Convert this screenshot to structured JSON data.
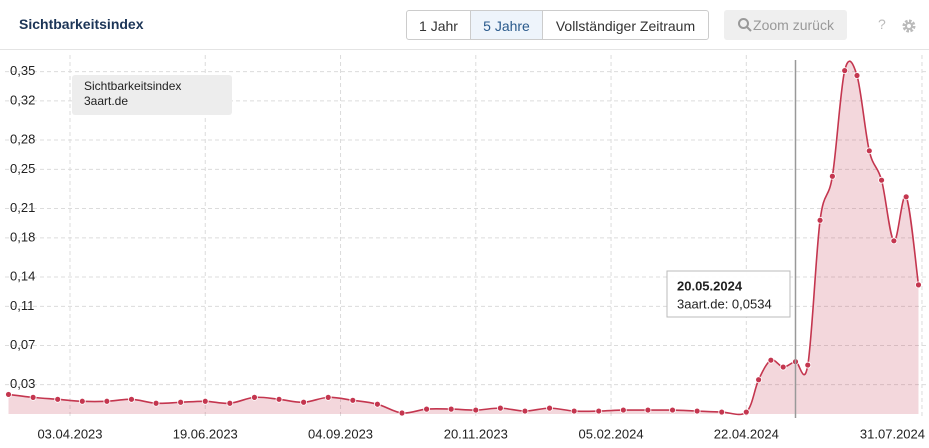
{
  "header": {
    "title": "Sichtbarkeitsindex",
    "buttons": [
      "1 Jahr",
      "5 Jahre",
      "Vollständiger Zeitraum"
    ],
    "zoom": "Zoom zurück",
    "help": "?"
  },
  "chart_data": {
    "type": "area",
    "legend_title": "Sichtbarkeitsindex",
    "series": [
      {
        "name": "3aart.de",
        "color": "#c4364f",
        "x": [
          "27.02.2023",
          "13.03.2023",
          "27.03.2023",
          "10.04.2023",
          "24.04.2023",
          "08.05.2023",
          "22.05.2023",
          "05.06.2023",
          "19.06.2023",
          "03.07.2023",
          "17.07.2023",
          "31.07.2023",
          "14.08.2023",
          "28.08.2023",
          "11.09.2023",
          "25.09.2023",
          "09.10.2023",
          "23.10.2023",
          "06.11.2023",
          "20.11.2023",
          "04.12.2023",
          "18.12.2023",
          "01.01.2024",
          "15.01.2024",
          "29.01.2024",
          "12.02.2024",
          "26.02.2024",
          "11.03.2024",
          "25.03.2024",
          "08.04.2024",
          "22.04.2024",
          "29.04.2024",
          "06.05.2024",
          "13.05.2024",
          "20.05.2024",
          "27.05.2024",
          "03.06.2024",
          "10.06.2024",
          "17.06.2024",
          "24.06.2024",
          "01.07.2024",
          "08.07.2024",
          "15.07.2024",
          "22.07.2024",
          "29.07.2024"
        ],
        "values": [
          0.02,
          0.017,
          0.015,
          0.013,
          0.013,
          0.015,
          0.011,
          0.012,
          0.013,
          0.011,
          0.017,
          0.015,
          0.012,
          0.017,
          0.014,
          0.01,
          0.001,
          0.005,
          0.005,
          0.004,
          0.006,
          0.003,
          0.006,
          0.003,
          0.003,
          0.004,
          0.004,
          0.004,
          0.003,
          0.002,
          0.002,
          0.035,
          0.055,
          0.048,
          0.0534,
          0.05,
          0.198,
          0.243,
          0.351,
          0.346,
          0.269,
          0.239,
          0.177,
          0.222,
          0.132
        ]
      }
    ],
    "xlim": [
      "25.02.2023",
      "04.08.2024"
    ],
    "xticks": [
      "03.04.2023",
      "19.06.2023",
      "04.09.2023",
      "20.11.2023",
      "05.02.2024",
      "22.04.2024",
      "31.07.2024"
    ],
    "ylim": [
      0,
      0.37
    ],
    "yticks": [
      {
        "value": 0.03,
        "label": "0,03"
      },
      {
        "value": 0.07,
        "label": "0,07"
      },
      {
        "value": 0.11,
        "label": "0,11"
      },
      {
        "value": 0.14,
        "label": "0,14"
      },
      {
        "value": 0.18,
        "label": "0,18"
      },
      {
        "value": 0.21,
        "label": "0,21"
      },
      {
        "value": 0.25,
        "label": "0,25"
      },
      {
        "value": 0.28,
        "label": "0,28"
      },
      {
        "value": 0.32,
        "label": "0,32"
      },
      {
        "value": 0.35,
        "label": "0,35"
      }
    ],
    "grid": true,
    "tooltip": {
      "title": "20.05.2024",
      "text": "3aart.de: 0,0534"
    }
  }
}
